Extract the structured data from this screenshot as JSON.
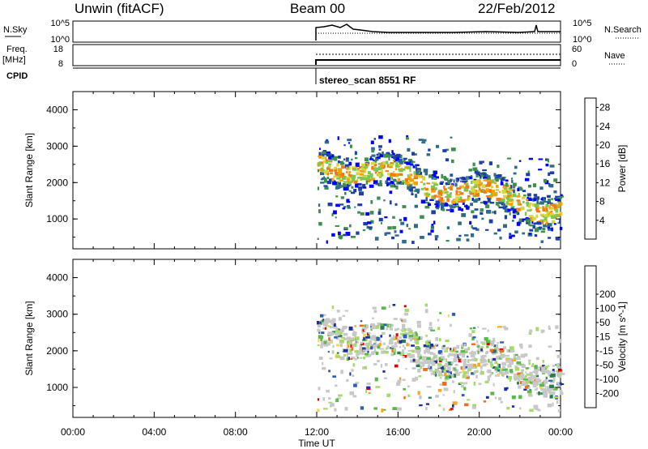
{
  "header": {
    "station": "Unwin (fitACF)",
    "beam": "Beam 00",
    "date": "22/Feb/2012"
  },
  "top_panels": {
    "nsky_label": "N.Sky",
    "nsky_ticks": [
      "10^5",
      "10^0"
    ],
    "nsearch_label": "N.Search",
    "nsearch_ticks": [
      "10^5",
      "10^0"
    ],
    "freq_label": "Freq.",
    "freq_unit": "[MHz]",
    "freq_ticks": [
      "18",
      "8"
    ],
    "nave_label": "Nave",
    "nave_ticks": [
      "60",
      "0"
    ],
    "cpid_label": "CPID",
    "cpid_value": "stereo_scan 8551 RF"
  },
  "colors": {
    "power": [
      "#0000ff",
      "#1f3fa8",
      "#2f6c8a",
      "#3e8f4c",
      "#7cc653",
      "#d4d63c",
      "#f5a20a",
      "#f07a12",
      "#e83a10",
      "#e00000"
    ],
    "velocity": [
      "#1b2f9e",
      "#2f5fb0",
      "#2a7a55",
      "#5cb84a",
      "#a8d96b",
      "#c8c8c8",
      "#f4d848",
      "#f5a623",
      "#ee6f1b",
      "#e00000"
    ]
  },
  "chart_data": [
    {
      "type": "heatmap",
      "title": "",
      "xlabel": "Time UT",
      "ylabel": "Slant Range [km]",
      "xticks": [
        "00:00",
        "04:00",
        "08:00",
        "12:00",
        "16:00",
        "20:00",
        "00:00"
      ],
      "yticks": [
        1000,
        2000,
        3000,
        4000
      ],
      "xlim": [
        0,
        24
      ],
      "ylim": [
        180,
        4500
      ],
      "colorbar_label": "Power [dB]",
      "colorbar_ticks": [
        4,
        8,
        12,
        16,
        20,
        24,
        28
      ],
      "colorbar_range": [
        0,
        30
      ],
      "data_time_range": [
        12,
        24
      ]
    },
    {
      "type": "heatmap",
      "title": "",
      "xlabel": "Time UT",
      "ylabel": "Slant Range [km]",
      "xticks": [
        "00:00",
        "04:00",
        "08:00",
        "12:00",
        "16:00",
        "20:00",
        "00:00"
      ],
      "yticks": [
        1000,
        2000,
        3000,
        4000
      ],
      "xlim": [
        0,
        24
      ],
      "ylim": [
        180,
        4500
      ],
      "colorbar_label": "Velocity [m s^-1]",
      "colorbar_ticks": [
        -200,
        -100,
        -50,
        -15,
        15,
        50,
        100,
        200
      ],
      "colorbar_range": [
        -250,
        250
      ],
      "data_time_range": [
        12,
        24
      ]
    }
  ]
}
